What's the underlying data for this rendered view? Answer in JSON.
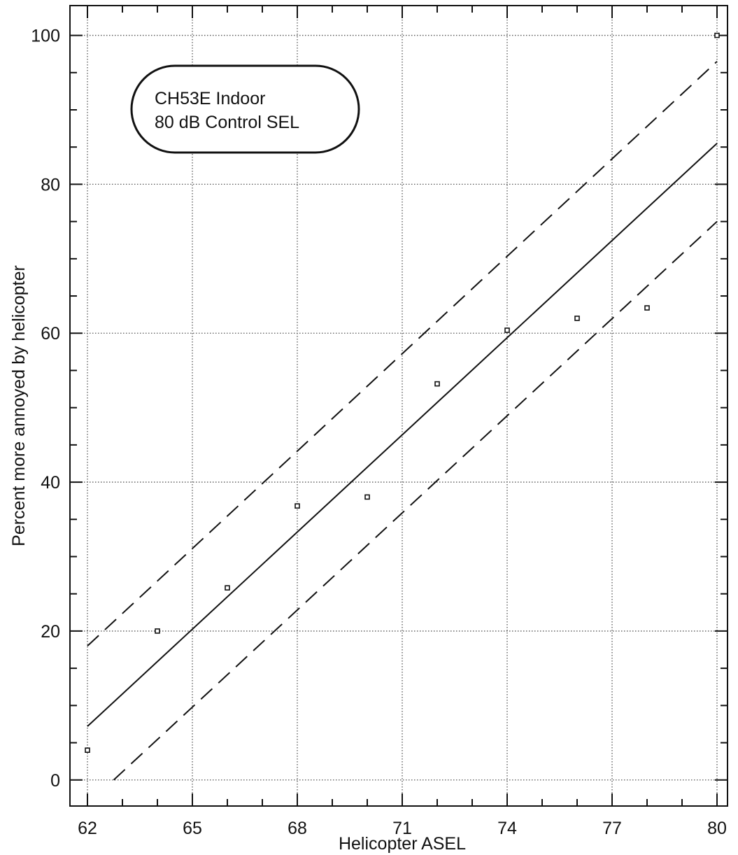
{
  "chart_data": {
    "type": "scatter",
    "title": "",
    "annotation": {
      "lines": [
        "CH53E Indoor",
        "80 dB Control SEL"
      ]
    },
    "xlabel": "Helicopter ASEL",
    "ylabel": "Percent more annoyed by helicopter",
    "xlim": [
      61.5,
      80.3
    ],
    "ylim": [
      -3.5,
      104
    ],
    "x_ticks": [
      62,
      65,
      68,
      71,
      74,
      77,
      80
    ],
    "y_ticks": [
      0,
      20,
      40,
      60,
      80,
      100
    ],
    "x_minor_step": 1,
    "y_minor_step": 5,
    "grid": true,
    "points": {
      "x": [
        62,
        64,
        66,
        68,
        70,
        72,
        74,
        76,
        78,
        80
      ],
      "y": [
        4,
        20,
        25.8,
        36.8,
        38,
        53.2,
        60.4,
        62,
        63.4,
        100
      ]
    },
    "fit_line": {
      "x": [
        62,
        80
      ],
      "y": [
        7.2,
        85.5
      ]
    },
    "upper_bound": {
      "x": [
        62,
        80
      ],
      "y": [
        18,
        96.5
      ]
    },
    "lower_bound": {
      "x": [
        62.75,
        80
      ],
      "y": [
        0,
        75
      ]
    }
  }
}
